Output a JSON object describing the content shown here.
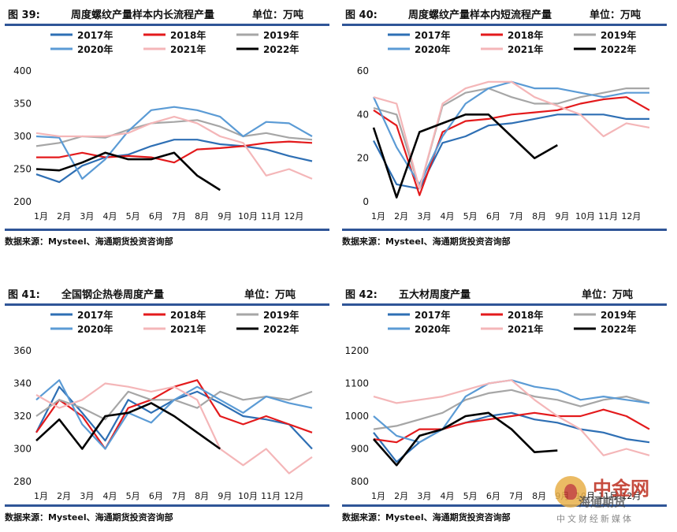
{
  "panels": [
    {
      "fig_label": "图 39:",
      "title": "周度螺纹产量样本内长流程产量",
      "unit": "单位：万吨",
      "source": "数据来源：Mysteel、海通期货投资咨询部"
    },
    {
      "fig_label": "图 40:",
      "title": "周度螺纹产量样本内短流程产量",
      "unit": "单位：万吨",
      "source": "数据来源：Mysteel、海通期货投资咨询部"
    },
    {
      "fig_label": "图 41:",
      "title": "全国钢企热卷周度产量",
      "unit": "单位：万吨",
      "source": "数据来源：Mysteel、海通期货投资咨询部"
    },
    {
      "fig_label": "图 42:",
      "title": "五大材周度产量",
      "unit": "单位：万吨",
      "source": "数据来源：Mysteel、海通期货投资咨询部"
    }
  ],
  "watermark": {
    "brand": "中金网",
    "sub": "海通期货",
    "tagline": "中文财经新媒体",
    "logo_icon": "cngold-logo-icon"
  },
  "colors": {
    "2017年": "#2e6fb4",
    "2018年": "#e31a1c",
    "2019年": "#a6a6a6",
    "2020年": "#5b9bd5",
    "2021年": "#f4b6b8",
    "2022年": "#000000",
    "rule": "#2f5597"
  },
  "chart_data": [
    {
      "type": "line",
      "legend": "top",
      "x_ticks": [
        "1月",
        "2月",
        "3月",
        "4月",
        "5月",
        "6月",
        "7月",
        "8月",
        "9月",
        "10月",
        "11月",
        "12月"
      ],
      "ylim": [
        200,
        400
      ],
      "y_ticks": [
        200,
        250,
        300,
        350,
        400
      ],
      "series": [
        {
          "name": "2017年",
          "values": [
            242,
            230,
            255,
            268,
            272,
            285,
            295,
            295,
            288,
            285,
            280,
            270,
            262
          ]
        },
        {
          "name": "2018年",
          "values": [
            268,
            268,
            275,
            268,
            270,
            268,
            260,
            280,
            282,
            285,
            290,
            292,
            290
          ]
        },
        {
          "name": "2019年",
          "values": [
            285,
            290,
            300,
            298,
            310,
            320,
            322,
            325,
            315,
            300,
            305,
            298,
            295
          ]
        },
        {
          "name": "2020年",
          "values": [
            300,
            298,
            235,
            265,
            308,
            340,
            345,
            340,
            330,
            300,
            322,
            320,
            300
          ]
        },
        {
          "name": "2021年",
          "values": [
            305,
            300,
            300,
            300,
            305,
            320,
            330,
            320,
            300,
            290,
            240,
            250,
            235
          ]
        },
        {
          "name": "2022年",
          "values": [
            250,
            248,
            260,
            275,
            265,
            265,
            275,
            240,
            218
          ]
        }
      ]
    },
    {
      "type": "line",
      "legend": "top",
      "x_ticks": [
        "1月",
        "2月",
        "3月",
        "4月",
        "5月",
        "6月",
        "7月",
        "8月",
        "9月",
        "10月",
        "11月",
        "12月"
      ],
      "ylim": [
        0,
        60
      ],
      "y_ticks": [
        0,
        20,
        40,
        60
      ],
      "series": [
        {
          "name": "2017年",
          "values": [
            28,
            8,
            6,
            27,
            30,
            35,
            36,
            38,
            40,
            40,
            40,
            38,
            38
          ]
        },
        {
          "name": "2018年",
          "values": [
            42,
            35,
            3,
            32,
            37,
            38,
            40,
            41,
            42,
            45,
            47,
            48,
            42
          ]
        },
        {
          "name": "2019年",
          "values": [
            43,
            40,
            6,
            44,
            50,
            52,
            48,
            45,
            45,
            48,
            50,
            52,
            52
          ]
        },
        {
          "name": "2020年",
          "values": [
            48,
            25,
            8,
            30,
            45,
            52,
            55,
            52,
            52,
            50,
            48,
            50,
            50
          ]
        },
        {
          "name": "2021年",
          "values": [
            48,
            45,
            6,
            45,
            52,
            55,
            55,
            48,
            44,
            40,
            30,
            36,
            34
          ]
        },
        {
          "name": "2022年",
          "values": [
            34,
            2,
            32,
            36,
            40,
            40,
            30,
            20,
            26
          ]
        }
      ]
    },
    {
      "type": "line",
      "legend": "top",
      "x_ticks": [
        "1月",
        "2月",
        "3月",
        "4月",
        "5月",
        "6月",
        "7月",
        "8月",
        "9月",
        "10月",
        "11月",
        "12月"
      ],
      "ylim": [
        280,
        360
      ],
      "y_ticks": [
        280,
        300,
        320,
        340,
        360
      ],
      "series": [
        {
          "name": "2017年",
          "values": [
            310,
            338,
            322,
            305,
            330,
            322,
            330,
            335,
            328,
            320,
            318,
            315,
            300
          ]
        },
        {
          "name": "2018年",
          "values": [
            310,
            330,
            320,
            300,
            325,
            330,
            338,
            342,
            320,
            315,
            320,
            315,
            310
          ]
        },
        {
          "name": "2019年",
          "values": [
            320,
            330,
            325,
            318,
            335,
            330,
            330,
            325,
            335,
            330,
            332,
            330,
            335
          ]
        },
        {
          "name": "2020年",
          "values": [
            330,
            342,
            315,
            300,
            322,
            316,
            330,
            338,
            330,
            322,
            332,
            328,
            325
          ]
        },
        {
          "name": "2021年",
          "values": [
            333,
            325,
            330,
            340,
            338,
            335,
            338,
            330,
            300,
            290,
            300,
            285,
            295
          ]
        },
        {
          "name": "2022年",
          "values": [
            305,
            318,
            300,
            320,
            322,
            328,
            320,
            310,
            300
          ]
        }
      ]
    },
    {
      "type": "line",
      "legend": "top",
      "x_ticks": [
        "1月",
        "2月",
        "3月",
        "4月",
        "5月",
        "6月",
        "7月",
        "8月",
        "9月",
        "10月",
        "11月",
        "12月"
      ],
      "ylim": [
        800,
        1200
      ],
      "y_ticks": [
        800,
        900,
        1000,
        1100,
        1200
      ],
      "series": [
        {
          "name": "2017年",
          "values": [
            950,
            860,
            920,
            960,
            980,
            1000,
            1010,
            990,
            980,
            960,
            950,
            930,
            920
          ]
        },
        {
          "name": "2018年",
          "values": [
            930,
            920,
            960,
            960,
            980,
            990,
            1000,
            1010,
            1000,
            1000,
            1020,
            1000,
            960
          ]
        },
        {
          "name": "2019年",
          "values": [
            960,
            970,
            990,
            1010,
            1050,
            1070,
            1080,
            1060,
            1050,
            1030,
            1050,
            1060,
            1040
          ]
        },
        {
          "name": "2020年",
          "values": [
            1000,
            940,
            920,
            960,
            1060,
            1100,
            1110,
            1090,
            1080,
            1050,
            1060,
            1050,
            1040
          ]
        },
        {
          "name": "2021年",
          "values": [
            1060,
            1040,
            1050,
            1060,
            1080,
            1100,
            1110,
            1050,
            1000,
            960,
            880,
            900,
            880
          ]
        },
        {
          "name": "2022年",
          "values": [
            930,
            850,
            940,
            960,
            1000,
            1010,
            960,
            890,
            895
          ]
        }
      ]
    }
  ]
}
